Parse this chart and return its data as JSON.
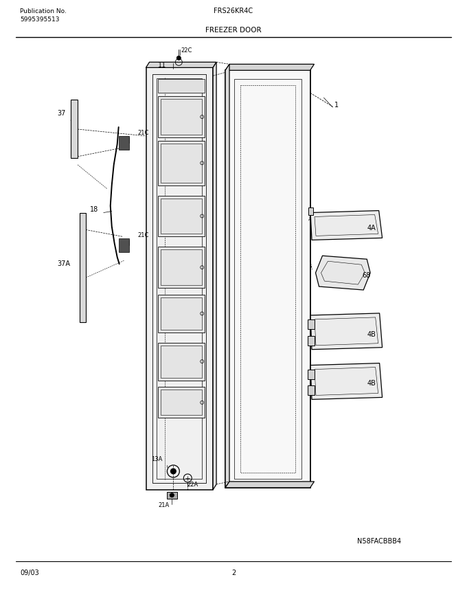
{
  "page_width": 6.8,
  "page_height": 8.69,
  "dpi": 100,
  "bg_color": "#ffffff",
  "line_color": "#000000",
  "pub_no_label": "Publication No.",
  "pub_no_value": "5995395513",
  "model_label": "FRS26KR4C",
  "section_title": "FREEZER DOOR",
  "footer_date": "09/03",
  "footer_page": "2",
  "watermark": "N58FACBBB4"
}
